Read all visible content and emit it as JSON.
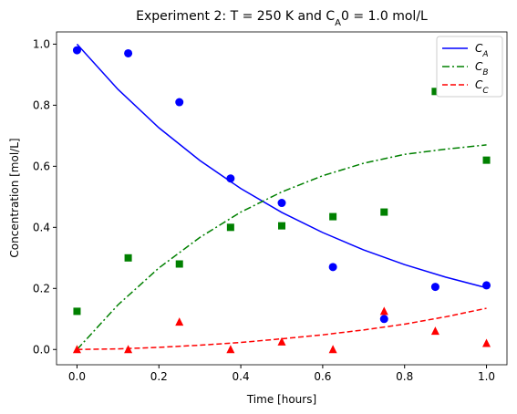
{
  "chart_data": {
    "type": "line",
    "title": [
      "Experiment 2: T = 250 K and C",
      "A",
      "0 = 1.0 mol/L"
    ],
    "x_label": "Time [hours]",
    "y_label": "Concentration [mol/L]",
    "x": [
      0,
      0.1,
      0.2,
      0.3,
      0.4,
      0.5,
      0.6,
      0.7,
      0.8,
      0.9,
      1.0
    ],
    "series": [
      {
        "name": "CA",
        "color": "#0000ff",
        "dash": "solid",
        "values": [
          1,
          0.852,
          0.726,
          0.619,
          0.527,
          0.449,
          0.383,
          0.326,
          0.278,
          0.237,
          0.202
        ]
      },
      {
        "name": "CB",
        "color": "#008000",
        "dash": "dashdot",
        "values": [
          0,
          0.146,
          0.267,
          0.367,
          0.45,
          0.516,
          0.569,
          0.61,
          0.639,
          0.656,
          0.67
        ]
      },
      {
        "name": "CC",
        "color": "#ff0000",
        "dash": "dashed",
        "values": [
          0,
          0.002,
          0.007,
          0.014,
          0.023,
          0.035,
          0.048,
          0.064,
          0.083,
          0.107,
          0.135
        ]
      }
    ],
    "scatter_x": [
      0,
      0.125,
      0.25,
      0.375,
      0.5,
      0.625,
      0.75,
      0.875,
      1.0
    ],
    "scatter_series": [
      {
        "marker": "circle",
        "color": "#0000ff",
        "values": [
          0.98,
          0.97,
          0.81,
          0.56,
          0.48,
          0.27,
          0.1,
          0.205,
          0.21
        ]
      },
      {
        "marker": "square",
        "color": "#008000",
        "values": [
          0.125,
          0.3,
          0.28,
          0.4,
          0.405,
          0.435,
          0.45,
          0.845,
          0.62
        ]
      },
      {
        "marker": "triangle",
        "color": "#ff0000",
        "values": [
          0,
          0,
          0.09,
          0,
          0.025,
          0,
          0.125,
          0.06,
          0.02
        ]
      }
    ],
    "xlim": [
      -0.05,
      1.05
    ],
    "ylim": [
      -0.05,
      1.04
    ],
    "xticks": [
      {
        "value": 0,
        "label": "0.0"
      },
      0.2,
      0.4,
      0.6,
      0.8,
      {
        "value": 1,
        "label": "1.0"
      }
    ],
    "yticks": [
      {
        "value": 0,
        "label": "0.0"
      },
      0.2,
      0.4,
      0.6,
      0.8,
      {
        "value": 1,
        "label": "1.0"
      }
    ],
    "grid": false,
    "legend": "upper right"
  }
}
